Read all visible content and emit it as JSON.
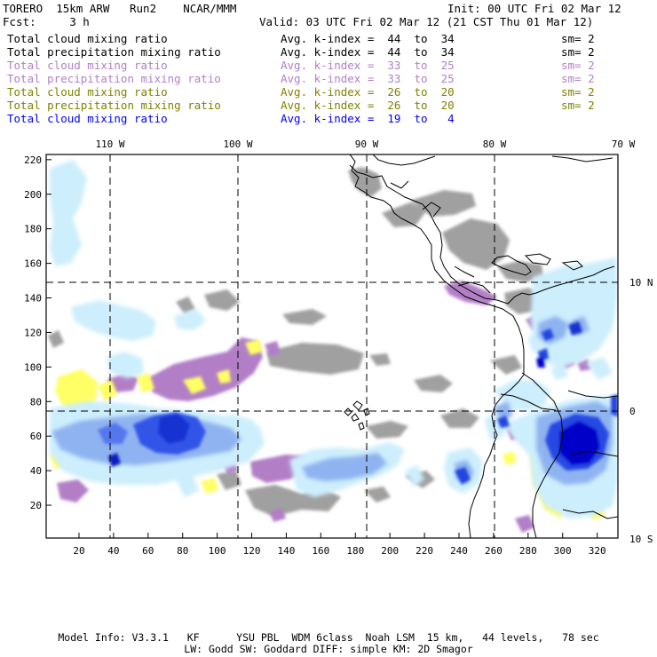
{
  "header": {
    "model": "TORERO  15km ARW   Run2    NCAR/MMM",
    "init": "Init: 00 UTC Fri 02 Mar 12",
    "fcst": "Fcst:     3 h",
    "valid": "Valid: 03 UTC Fri 02 Mar 12 (21 CST Thu 01 Mar 12)"
  },
  "legend": [
    {
      "field": "Total cloud mixing ratio",
      "kindex": "Avg. k-index =  44  to  34",
      "sm": "sm= 2",
      "color": "#000000"
    },
    {
      "field": "Total precipitation mixing ratio",
      "kindex": "Avg. k-index =  44  to  34",
      "sm": "sm= 2",
      "color": "#000000"
    },
    {
      "field": "Total cloud mixing ratio",
      "kindex": "Avg. k-index =  33  to  25",
      "sm": "sm= 2",
      "color": "#b27fc7"
    },
    {
      "field": "Total precipitation mixing ratio",
      "kindex": "Avg. k-index =  33  to  25",
      "sm": "sm= 2",
      "color": "#b27fc7"
    },
    {
      "field": "Total cloud mixing ratio",
      "kindex": "Avg. k-index =  26  to  20",
      "sm": "sm= 2",
      "color": "#808000"
    },
    {
      "field": "Total precipitation mixing ratio",
      "kindex": "Avg. k-index =  26  to  20",
      "sm": "sm= 2",
      "color": "#808000"
    },
    {
      "field": "Total cloud mixing ratio",
      "kindex": "Avg. k-index =  19  to   4",
      "sm": "",
      "color": "#0000ff"
    }
  ],
  "map": {
    "lon_labels": [
      "110 W",
      "100 W",
      "90 W",
      "80 W",
      "70 W"
    ],
    "lat_labels": [
      "10 N",
      "0",
      "10 S"
    ],
    "x_ticks": [
      "20",
      "40",
      "60",
      "80",
      "100",
      "120",
      "140",
      "160",
      "180",
      "200",
      "220",
      "240",
      "260",
      "280",
      "300",
      "320"
    ],
    "y_ticks": [
      "220",
      "200",
      "180",
      "160",
      "140",
      "120",
      "100",
      "80",
      "60",
      "40",
      "20"
    ],
    "colors": {
      "gray": "#a0a0a0",
      "purple": "#b27fc7",
      "yellow": "#ffff66",
      "light_blue": "#cdeefc",
      "mid_blue": "#8fb3f0",
      "blue": "#2040e0",
      "deep_blue": "#0000cc",
      "coast": "#000000"
    }
  },
  "footer": {
    "line1": "Model Info: V3.3.1   KF      YSU PBL  WDM 6class  Noah LSM  15 km,   44 levels,   78 sec",
    "line2": "LW: Godd SW: Goddard DIFF: simple KM: 2D Smagor"
  }
}
